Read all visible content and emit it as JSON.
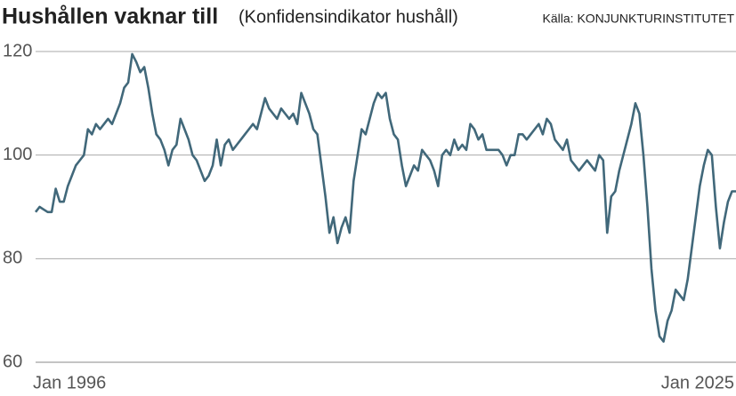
{
  "chart_data": {
    "type": "line",
    "title": "Hushållen vaknar till",
    "subtitle": "(Konfidensindikator hushåll)",
    "source": "Källa: KONJUNKTURINSTITUTET",
    "categories": [
      "Jan 1996",
      null,
      null,
      null,
      null,
      null,
      null,
      null,
      null,
      null,
      null,
      null,
      null,
      null,
      null,
      null,
      null,
      null,
      null,
      null,
      null,
      null,
      null,
      null,
      null,
      null,
      null,
      null,
      null,
      null,
      null,
      null,
      null,
      null,
      null,
      null,
      null,
      null,
      null,
      null,
      null,
      null,
      null,
      null,
      null,
      null,
      null,
      null,
      null,
      null,
      null,
      null,
      null,
      null,
      null,
      null,
      null,
      null,
      null,
      null,
      null,
      null,
      null,
      null,
      null,
      null,
      null,
      null,
      null,
      null,
      null,
      null,
      null,
      null,
      null,
      null,
      null,
      null,
      null,
      null,
      null,
      null,
      null,
      null,
      null,
      null,
      null,
      null,
      null,
      null,
      null,
      null,
      null,
      null,
      null,
      null,
      null,
      null,
      null,
      null,
      null,
      null,
      null,
      null,
      null,
      null,
      null,
      null,
      null,
      null,
      null,
      null,
      null,
      null,
      null,
      null,
      null,
      null,
      null,
      null,
      null,
      null,
      null,
      null,
      null,
      null,
      null,
      null,
      null,
      null,
      null,
      null,
      null,
      null,
      null,
      null,
      null,
      null,
      null,
      null,
      null,
      null,
      null,
      null,
      null,
      null,
      null,
      null,
      null,
      null,
      null,
      null,
      null,
      null,
      null,
      null,
      null,
      null,
      null,
      null,
      null,
      null,
      null,
      null,
      null,
      null,
      null,
      null,
      null,
      null,
      null,
      null,
      null,
      null,
      "Jan 2025"
    ],
    "series": [
      {
        "name": "Konfidensindikator hushåll",
        "color": "#41687a",
        "values": [
          89,
          90,
          89.5,
          89,
          89,
          93.5,
          91,
          91,
          94,
          96,
          98,
          99,
          100,
          105,
          104,
          106,
          105,
          106,
          107,
          106,
          108,
          110,
          113,
          114,
          119.5,
          118,
          116,
          117,
          113,
          108,
          104,
          103,
          101,
          98,
          101,
          102,
          107,
          105,
          103,
          100,
          99,
          97,
          95,
          96,
          98,
          103,
          98,
          102,
          103,
          101,
          102,
          103,
          104,
          105,
          106,
          105,
          108,
          111,
          109,
          108,
          107,
          109,
          108,
          107,
          108,
          106,
          112,
          110,
          108,
          105,
          104,
          98,
          92,
          85,
          88,
          83,
          86,
          88,
          85,
          95,
          100,
          105,
          104,
          107,
          110,
          112,
          111,
          112,
          107,
          104,
          103,
          98,
          94,
          96,
          98,
          97,
          101,
          100,
          99,
          97,
          94,
          100,
          101,
          100,
          103,
          101,
          102,
          101,
          106,
          105,
          103,
          104,
          101,
          101,
          101,
          101,
          100,
          98,
          100,
          100,
          104,
          104,
          103,
          104,
          105,
          106,
          104,
          107,
          106,
          103,
          102,
          101,
          103,
          99,
          98,
          97,
          98,
          99,
          98,
          97,
          100,
          99,
          85,
          92,
          93,
          97,
          100,
          103,
          106,
          110,
          108,
          100,
          90,
          78,
          70,
          65,
          64,
          68,
          70,
          74,
          73,
          72,
          76,
          82,
          88,
          94,
          98,
          101,
          100,
          90,
          82,
          87,
          91,
          93,
          93
        ]
      }
    ],
    "ylim": [
      60,
      120
    ],
    "yticks": [
      60,
      80,
      100,
      120
    ],
    "grid": true
  }
}
